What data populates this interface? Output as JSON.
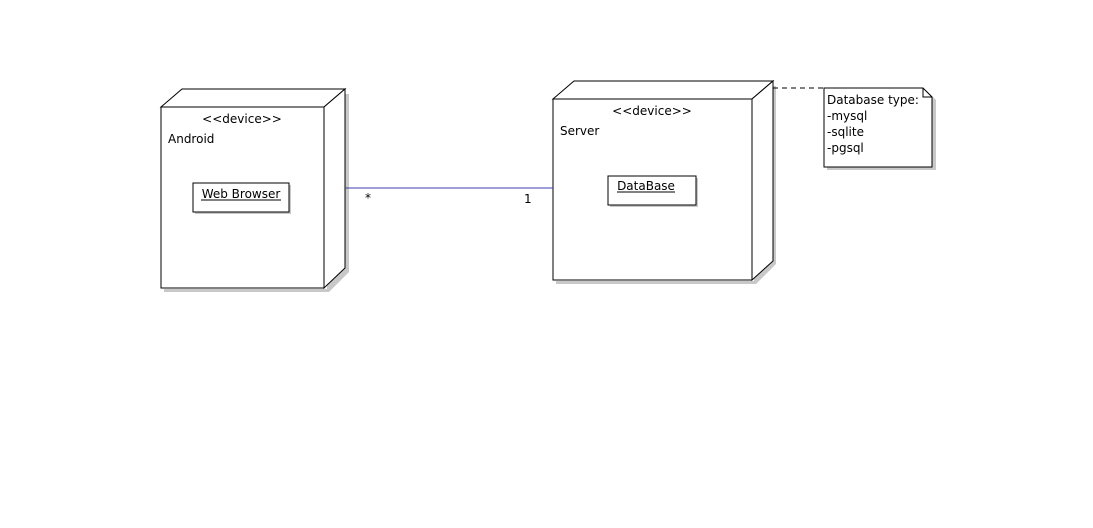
{
  "diagram": {
    "nodes": [
      {
        "stereotype": "<<device>>",
        "name": "Android",
        "artifact": "Web Browser"
      },
      {
        "stereotype": "<<device>>",
        "name": "Server",
        "artifact": "DataBase"
      }
    ],
    "association": {
      "color": "#3c3ca8",
      "left_multiplicity": "*",
      "right_multiplicity": "1"
    },
    "note": {
      "title": "Database type:",
      "lines": [
        "-mysql",
        "-sqlite",
        "-pgsql"
      ]
    }
  }
}
